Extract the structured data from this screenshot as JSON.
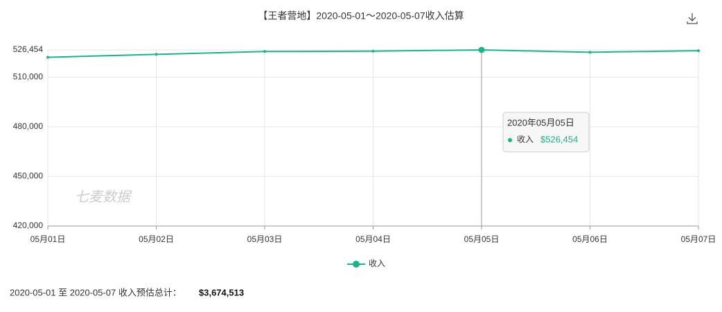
{
  "chart_data": {
    "type": "line",
    "title": "【王者营地】2020-05-01～2020-05-07收入估算",
    "categories": [
      "05月01日",
      "05月02日",
      "05月03日",
      "05月04日",
      "05月05日",
      "05月06日",
      "05月07日"
    ],
    "series": [
      {
        "name": "收入",
        "color": "#1ab38a",
        "values": [
          522000,
          523800,
          525500,
          525700,
          526454,
          525059,
          526000
        ]
      }
    ],
    "ylim": [
      420000,
      526454
    ],
    "yticks": [
      {
        "value": 420000,
        "label": "420,000"
      },
      {
        "value": 450000,
        "label": "450,000"
      },
      {
        "value": 480000,
        "label": "480,000"
      },
      {
        "value": 510000,
        "label": "510,000"
      },
      {
        "value": 526454,
        "label": "526,454"
      }
    ],
    "grid": true,
    "watermark": "七麦数据",
    "tooltip": {
      "title": "2020年05月05日",
      "index": 4,
      "value_label": "$526,454"
    }
  },
  "summary": {
    "text": "2020-05-01 至 2020-05-07 收入预估总计：",
    "total": "$3,674,513"
  }
}
